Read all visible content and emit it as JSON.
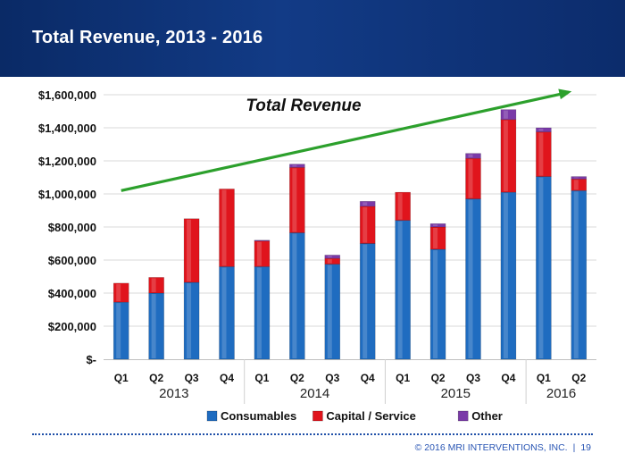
{
  "slide": {
    "title": "Total Revenue, 2013 - 2016",
    "footer_copyright": "© 2016 MRI INTERVENTIONS, INC.",
    "footer_separator": "|",
    "page_number": "19"
  },
  "colors": {
    "consumables": "#1f6cc0",
    "capital": "#e0141c",
    "other": "#7a3aa8",
    "trend_arrow": "#2ca02c",
    "banner": "#123b86"
  },
  "chart_data": {
    "type": "bar",
    "stacked": true,
    "title": "",
    "annotation": "Total Revenue",
    "xlabel": "",
    "ylabel": "",
    "ylim": [
      0,
      1600000
    ],
    "yticks": [
      {
        "value": 0,
        "label": "$-"
      },
      {
        "value": 200000,
        "label": "$200,000"
      },
      {
        "value": 400000,
        "label": "$400,000"
      },
      {
        "value": 600000,
        "label": "$600,000"
      },
      {
        "value": 800000,
        "label": "$800,000"
      },
      {
        "value": 1000000,
        "label": "$1,000,000"
      },
      {
        "value": 1200000,
        "label": "$1,200,000"
      },
      {
        "value": 1400000,
        "label": "$1,400,000"
      },
      {
        "value": 1600000,
        "label": "$1,600,000"
      }
    ],
    "categories": [
      "Q1",
      "Q2",
      "Q3",
      "Q4",
      "Q1",
      "Q2",
      "Q3",
      "Q4",
      "Q1",
      "Q2",
      "Q3",
      "Q4",
      "Q1",
      "Q2"
    ],
    "year_groups": [
      {
        "label": "2013",
        "count": 4
      },
      {
        "label": "2014",
        "count": 4
      },
      {
        "label": "2015",
        "count": 4
      },
      {
        "label": "2016",
        "count": 2
      }
    ],
    "series": [
      {
        "name": "Consumables",
        "color": "#1f6cc0",
        "values": [
          345000,
          400000,
          465000,
          560000,
          560000,
          765000,
          575000,
          700000,
          840000,
          665000,
          970000,
          1010000,
          1105000,
          1020000
        ]
      },
      {
        "name": "Capital / Service",
        "color": "#e0141c",
        "values": [
          115000,
          95000,
          385000,
          470000,
          155000,
          395000,
          35000,
          225000,
          170000,
          135000,
          245000,
          440000,
          270000,
          70000
        ]
      },
      {
        "name": "Other",
        "color": "#7a3aa8",
        "values": [
          0,
          0,
          0,
          0,
          5000,
          20000,
          20000,
          30000,
          0,
          20000,
          30000,
          60000,
          25000,
          15000
        ]
      }
    ],
    "trend_line": {
      "label": "Total Revenue",
      "from": {
        "x_index": 0,
        "y": 1020000
      },
      "to": {
        "x_index": 13,
        "y": 1620000
      }
    },
    "legend": {
      "position": "bottom"
    }
  }
}
